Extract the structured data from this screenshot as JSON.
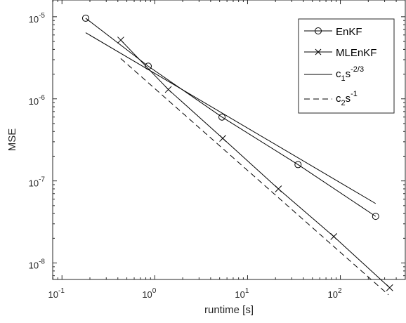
{
  "chart_data": {
    "type": "line",
    "xscale": "log",
    "yscale": "log",
    "xlabel": "runtime [s]",
    "ylabel": "MSE",
    "xlim": [
      0.0794,
      501
    ],
    "ylim": [
      6.3e-09,
      1.6e-05
    ],
    "xticks": [
      {
        "value": 0.1,
        "base": "10",
        "exp": "-1"
      },
      {
        "value": 1,
        "base": "10",
        "exp": "0"
      },
      {
        "value": 10,
        "base": "10",
        "exp": "1"
      },
      {
        "value": 100,
        "base": "10",
        "exp": "2"
      }
    ],
    "yticks": [
      {
        "value": 1e-08,
        "base": "10",
        "exp": "-8"
      },
      {
        "value": 1e-07,
        "base": "10",
        "exp": "-7"
      },
      {
        "value": 1e-06,
        "base": "10",
        "exp": "-6"
      },
      {
        "value": 1e-05,
        "base": "10",
        "exp": "-5"
      }
    ],
    "grid": false,
    "legend_position": "top-right",
    "series": [
      {
        "name": "EnKF",
        "marker": "circle",
        "line": "solid",
        "x": [
          0.18,
          0.85,
          5.3,
          35,
          240
        ],
        "y": [
          9.6e-06,
          2.5e-06,
          6e-07,
          1.58e-07,
          3.7e-08
        ]
      },
      {
        "name": "MLEnKF",
        "marker": "x",
        "line": "solid",
        "x": [
          0.43,
          1.4,
          5.4,
          21.5,
          85,
          340
        ],
        "y": [
          5.2e-06,
          1.3e-06,
          3.3e-07,
          8e-08,
          2.1e-08,
          5e-09
        ]
      },
      {
        "name_base": "c",
        "name_sub": "1",
        "name_mid": "s",
        "name_sup": "-2/3",
        "marker": "none",
        "line": "solid",
        "x": [
          0.18,
          240
        ],
        "y": [
          6.4e-06,
          5.3e-08
        ]
      },
      {
        "name_base": "c",
        "name_sub": "2",
        "name_mid": "s",
        "name_sup": "-1",
        "marker": "none",
        "line": "dashed",
        "x": [
          0.43,
          330
        ],
        "y": [
          3.1e-06,
          4.1e-09
        ]
      }
    ]
  }
}
